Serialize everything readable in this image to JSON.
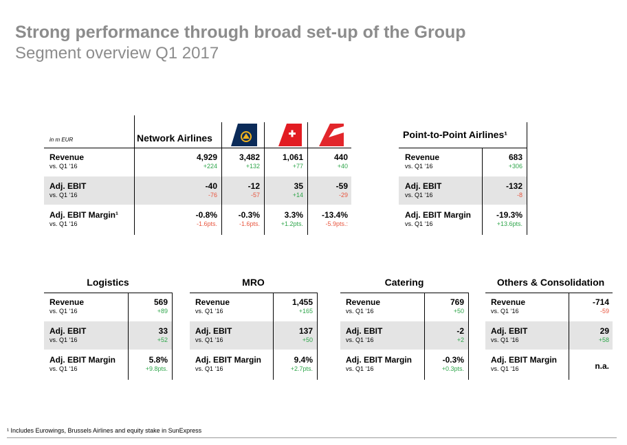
{
  "title": "Strong performance through broad set-up of the Group",
  "subtitle": "Segment overview Q1 2017",
  "unit": "in m EUR",
  "rows": {
    "revenue": "Revenue",
    "ebit": "Adj. EBIT",
    "margin": "Adj. EBIT Margin",
    "margin_fn": "Adj. EBIT Margin¹",
    "vs": "vs. Q1 ‘16"
  },
  "network": {
    "header": "Network Airlines",
    "columns": [
      {
        "logo": "network-airlines-total",
        "revenue": "4,929",
        "revenue_d": "+224",
        "ebit": "-40",
        "ebit_d": "-76",
        "margin": "-0.8%",
        "margin_d": "-1.6pts."
      },
      {
        "logo": "lufthansa-logo",
        "revenue": "3,482",
        "revenue_d": "+132",
        "ebit": "-12",
        "ebit_d": "-57",
        "margin": "-0.3%",
        "margin_d": "-1.6pts."
      },
      {
        "logo": "swiss-logo",
        "revenue": "1,061",
        "revenue_d": "+77",
        "ebit": "35",
        "ebit_d": "+14",
        "margin": "3.3%",
        "margin_d": "+1.2pts."
      },
      {
        "logo": "austrian-logo",
        "revenue": "440",
        "revenue_d": "+40",
        "ebit": "-59",
        "ebit_d": "-29",
        "margin": "-13.4%",
        "margin_d": "-5.9pts.:"
      }
    ]
  },
  "p2p": {
    "header": "Point-to-Point Airlines¹",
    "revenue": "683",
    "revenue_d": "+306",
    "ebit": "-132",
    "ebit_d": "-8",
    "margin": "-19.3%",
    "margin_d": "+13.6pts."
  },
  "segments": [
    {
      "header": "Logistics",
      "revenue": "569",
      "revenue_d": "+89",
      "ebit": "33",
      "ebit_d": "+52",
      "margin": "5.8%",
      "margin_d": "+9.8pts."
    },
    {
      "header": "MRO",
      "revenue": "1,455",
      "revenue_d": "+165",
      "ebit": "137",
      "ebit_d": "+50",
      "margin": "9.4%",
      "margin_d": "+2.7pts."
    },
    {
      "header": "Catering",
      "revenue": "769",
      "revenue_d": "+50",
      "ebit": "-2",
      "ebit_d": "+2",
      "margin": "-0.3%",
      "margin_d": "+0.3pts."
    },
    {
      "header": "Others & Consolidation",
      "revenue": "-714",
      "revenue_d": "-59",
      "ebit": "29",
      "ebit_d": "+58",
      "margin": "n.a.",
      "margin_d": ""
    }
  ],
  "colors": {
    "positive": "#2ea54a",
    "negative": "#e8553e",
    "title_gray": "#8c8c8c",
    "shade": "#e4e4e4"
  },
  "footnote": "¹ Includes Eurowings, Brussels Airlines and equity stake in SunExpress"
}
